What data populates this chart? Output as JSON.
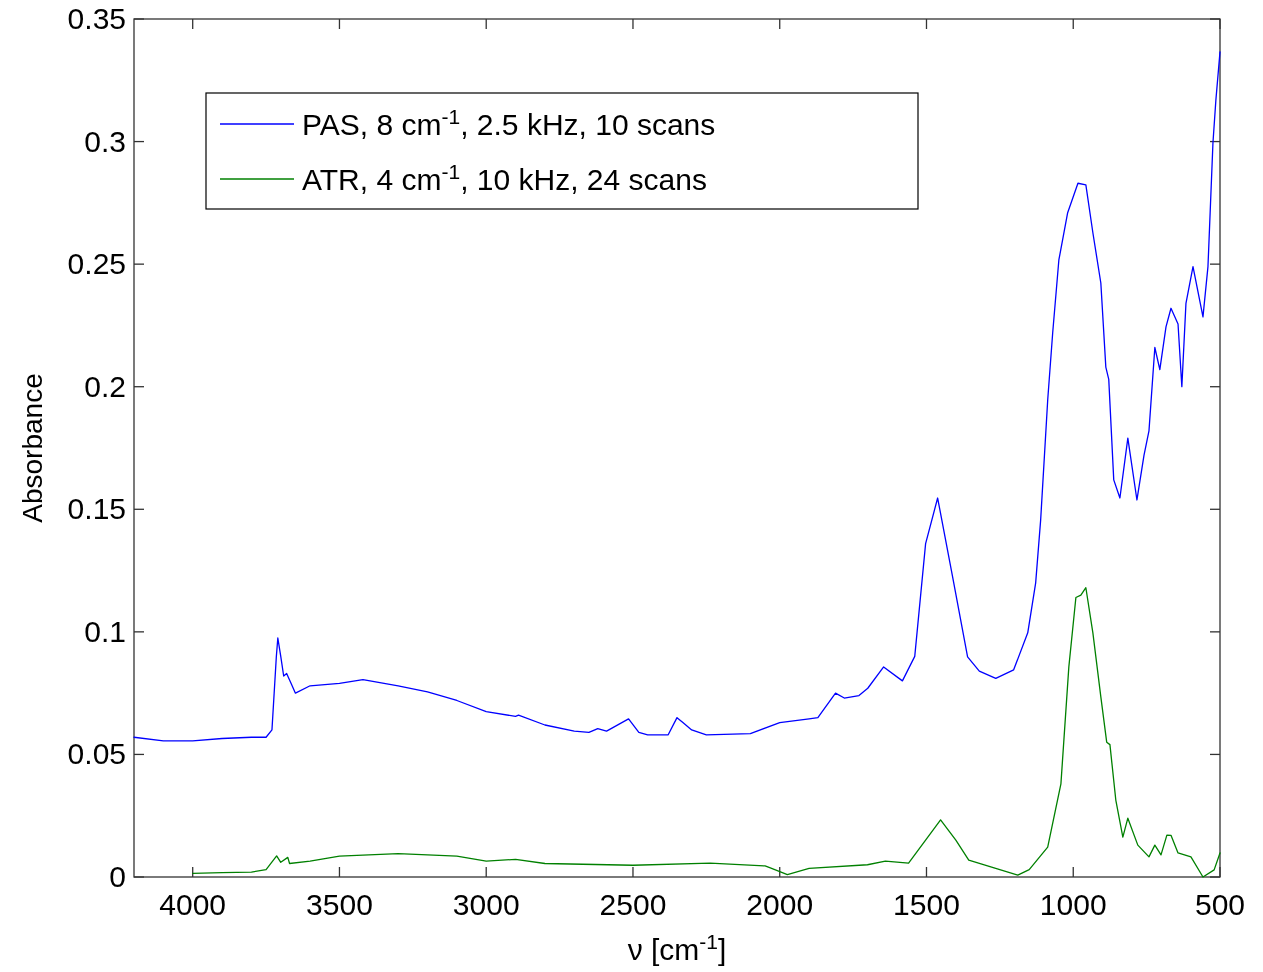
{
  "chart_data": {
    "type": "line",
    "xlabel": "ν [cm$^{-1}$]",
    "ylabel": "Absorbance",
    "xlim": [
      4200,
      500
    ],
    "xticks": [
      4000,
      3500,
      3000,
      2500,
      2000,
      1500,
      1000,
      500
    ],
    "ylim": [
      0,
      0.35
    ],
    "yticks": [
      0,
      0.05,
      0.1,
      0.15,
      0.2,
      0.25,
      0.3,
      0.35
    ],
    "grid": false,
    "legend": "top left",
    "line_style": "solid",
    "marker": "none",
    "series": [
      {
        "name": "PAS, 8 cm$^{-1}$, 2.5 kHz, 10 scans",
        "color": "#0000ff",
        "x": [
          4200,
          4100,
          4000,
          3900,
          3800,
          3750,
          3730,
          3715,
          3710,
          3700,
          3690,
          3680,
          3665,
          3650,
          3600,
          3500,
          3420,
          3300,
          3200,
          3100,
          3000,
          2900,
          2890,
          2800,
          2700,
          2650,
          2620,
          2590,
          2515,
          2480,
          2450,
          2380,
          2350,
          2330,
          2300,
          2250,
          2100,
          2000,
          1900,
          1870,
          1810,
          1780,
          1730,
          1700,
          1646,
          1582,
          1540,
          1503,
          1462,
          1411,
          1360,
          1320,
          1264,
          1203,
          1155,
          1128,
          1111,
          1087,
          1070,
          1049,
          1019,
          984,
          957,
          933,
          906,
          889,
          879,
          862,
          841,
          814,
          783,
          759,
          742,
          722,
          705,
          684,
          667,
          643,
          630,
          616,
          592,
          558,
          541,
          524,
          514,
          500
        ],
        "values": [
          0.057,
          0.0555,
          0.0555,
          0.0565,
          0.057,
          0.057,
          0.06,
          0.09,
          0.0975,
          0.09,
          0.082,
          0.083,
          0.079,
          0.075,
          0.078,
          0.079,
          0.0805,
          0.078,
          0.0755,
          0.072,
          0.0675,
          0.0655,
          0.066,
          0.062,
          0.0595,
          0.059,
          0.0605,
          0.0595,
          0.0645,
          0.059,
          0.058,
          0.058,
          0.065,
          0.063,
          0.06,
          0.058,
          0.0585,
          0.063,
          0.0645,
          0.065,
          0.075,
          0.073,
          0.074,
          0.077,
          0.0857,
          0.08,
          0.09,
          0.136,
          0.1546,
          0.1224,
          0.0898,
          0.084,
          0.081,
          0.0845,
          0.0996,
          0.12,
          0.1457,
          0.1946,
          0.222,
          0.2517,
          0.271,
          0.283,
          0.2823,
          0.2627,
          0.2423,
          0.208,
          0.203,
          0.162,
          0.1546,
          0.179,
          0.1538,
          0.172,
          0.182,
          0.216,
          0.207,
          0.2244,
          0.232,
          0.2256,
          0.2,
          0.234,
          0.249,
          0.2285,
          0.249,
          0.2995,
          0.317,
          0.3366
        ]
      },
      {
        "name": "ATR, 4 cm$^{-1}$, 10 kHz, 24 scans",
        "color": "#008000",
        "x": [
          4000,
          3900,
          3800,
          3750,
          3714,
          3700,
          3676,
          3670,
          3600,
          3500,
          3300,
          3100,
          3000,
          2900,
          2800,
          2500,
          2237,
          2050,
          2032,
          1974,
          1900,
          1701,
          1640,
          1561,
          1452,
          1400,
          1356,
          1189,
          1150,
          1087,
          1042,
          1015,
          991,
          974,
          957,
          933,
          906,
          886,
          875,
          855,
          831,
          814,
          780,
          742,
          722,
          701,
          681,
          667,
          643,
          599,
          558,
          520,
          500
        ],
        "values": [
          0.0015,
          0.0018,
          0.002,
          0.003,
          0.0086,
          0.006,
          0.008,
          0.0055,
          0.0065,
          0.0085,
          0.0095,
          0.0085,
          0.0065,
          0.0072,
          0.0055,
          0.0048,
          0.0057,
          0.0045,
          0.0037,
          0.001,
          0.0035,
          0.005,
          0.0065,
          0.0057,
          0.0233,
          0.015,
          0.0069,
          0.0008,
          0.003,
          0.0122,
          0.038,
          0.0857,
          0.114,
          0.115,
          0.118,
          0.0995,
          0.0735,
          0.055,
          0.054,
          0.0314,
          0.0163,
          0.024,
          0.013,
          0.0082,
          0.013,
          0.009,
          0.0171,
          0.017,
          0.0098,
          0.0082,
          0,
          0.0029,
          0.0098
        ]
      }
    ]
  }
}
